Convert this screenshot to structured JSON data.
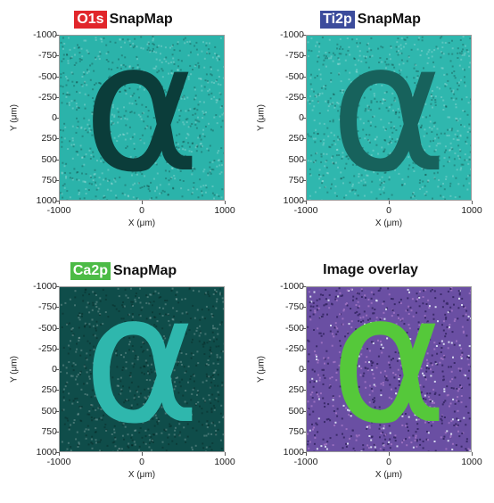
{
  "chart_data": [
    {
      "type": "heatmap",
      "title_tag": "O1s",
      "title_rest": "SnapMap",
      "tag_color": "#e1262b",
      "xlabel": "X (μm)",
      "ylabel": "Y (μm)",
      "xlim": [
        -1000,
        1000
      ],
      "ylim": [
        -1000,
        1000
      ],
      "x_ticks": [
        "-1000",
        "0",
        "1000"
      ],
      "y_ticks": [
        "-1000",
        "-750",
        "-500",
        "-250",
        "0",
        "250",
        "500",
        "750",
        "1000"
      ],
      "background_color": "#2bb3aa",
      "glyph": "α",
      "glyph_color": "#0b3d3a"
    },
    {
      "type": "heatmap",
      "title_tag": "Ti2p",
      "title_rest": "SnapMap",
      "tag_color": "#3c4c9c",
      "xlabel": "X (μm)",
      "ylabel": "Y (μm)",
      "xlim": [
        -1000,
        1000
      ],
      "ylim": [
        -1000,
        1000
      ],
      "x_ticks": [
        "-1000",
        "0",
        "1000"
      ],
      "y_ticks": [
        "-1000",
        "-750",
        "-500",
        "-250",
        "0",
        "250",
        "500",
        "750",
        "1000"
      ],
      "background_color": "#2fb7ae",
      "glyph": "α",
      "glyph_color": "#17625c"
    },
    {
      "type": "heatmap",
      "title_tag": "Ca2p",
      "title_rest": "SnapMap",
      "tag_color": "#4cbb46",
      "xlabel": "X (μm)",
      "ylabel": "Y (μm)",
      "xlim": [
        -1000,
        1000
      ],
      "ylim": [
        -1000,
        1000
      ],
      "x_ticks": [
        "-1000",
        "0",
        "1000"
      ],
      "y_ticks": [
        "-1000",
        "-750",
        "-500",
        "-250",
        "0",
        "250",
        "500",
        "750",
        "1000"
      ],
      "background_color": "#0f4d4a",
      "glyph": "α",
      "glyph_color": "#2fb7ad"
    },
    {
      "type": "heatmap",
      "title_tag": "",
      "title_rest": "Image overlay",
      "tag_color": "",
      "xlabel": "X (μm)",
      "ylabel": "Y (μm)",
      "xlim": [
        -1000,
        1000
      ],
      "ylim": [
        -1000,
        1000
      ],
      "x_ticks": [
        "-1000",
        "0",
        "1000"
      ],
      "y_ticks": [
        "-1000",
        "-750",
        "-500",
        "-250",
        "0",
        "250",
        "500",
        "750",
        "1000"
      ],
      "background_color": "#6a4fa3",
      "glyph": "α",
      "glyph_color": "#55c83a"
    }
  ]
}
